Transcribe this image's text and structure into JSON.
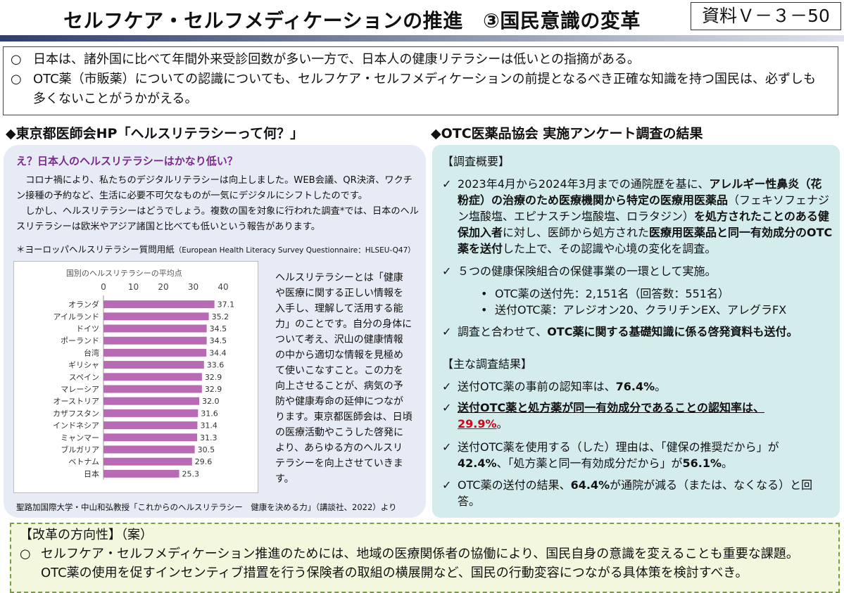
{
  "header": {
    "title": "セルフケア・セルフメディケーションの推進　③国民意識の変革",
    "doc_id": "資料Ｖ－３－50"
  },
  "summary": {
    "bullet": "○",
    "line1": "日本は、諸外国に比べて年間外来受診回数が多い一方で、日本人の健康リテラシーは低いとの指摘がある。",
    "line2a": "OTC薬（市販薬）についての認識についても、セルフケア・セルフメディケーションの前提となるべき正確な知識を持つ国民は、必ずしも",
    "line2b": "多くないことがうかがえる。"
  },
  "left": {
    "heading": "◆東京都医師会HP「ヘルスリテラシーって何？」",
    "subheading": "え？日本人のヘルスリテラシーはかなり低い？",
    "para1": "コロナ禍により、私たちのデジタルリテラシーは向上しました。WEB会議、QR決済、ワクチン接種の予約など、生活に必要不可欠なものが一気にデジタルにシフトしたのです。",
    "para2": "しかし、ヘルスリテラシーはどうでしょう。複数の国を対象に行われた調査*では、日本のヘルスリテラシーは欧米やアジア諸国と比べても低いという報告があります。",
    "footnote": "＊ヨーロッパヘルスリテラシー質問用紙",
    "footnote_small": "（European Health Literacy Survey Questionnaire：HLSEU-Q47）",
    "side_text": "ヘルスリテラシーとは「健康や医療に関する正しい情報を入手し、理解して活用する能力」のことです。自分の身体について考え、沢山の健康情報の中から適切な情報を見極めて使いこなすこと。この力を向上させることが、病気の予防や健康寿命の延伸につながります。東京都医師会は、日頃の医療活動やこうした啓発により、あらゆる方のヘルスリテラシーを向上させていきます。",
    "credit": "聖路加国際大学・中山和弘教授「これからのヘルスリテラシー　健康を決める力」（講談社、2022）より"
  },
  "chart_data": {
    "type": "bar",
    "title": "国別のヘルスリテラシーの平均点",
    "orientation": "horizontal",
    "categories": [
      "オランダ",
      "アイルランド",
      "ドイツ",
      "ポーランド",
      "台湾",
      "ギリシャ",
      "スペイン",
      "マレーシア",
      "オーストリア",
      "カザフスタン",
      "インドネシア",
      "ミャンマー",
      "ブルガリア",
      "ベトナム",
      "日本"
    ],
    "values": [
      37.1,
      35.2,
      34.5,
      34.5,
      34.4,
      33.6,
      32.9,
      32.9,
      32.0,
      31.6,
      31.4,
      31.3,
      30.5,
      29.6,
      25.3
    ],
    "value_labels": [
      "37.1",
      "35.2",
      "34.5",
      "34.5",
      "34.4",
      "33.6",
      "32.9",
      "32.9",
      "32.0",
      "31.6",
      "31.4",
      "31.3",
      "30.5",
      "29.6",
      "25.3"
    ],
    "xlim": [
      0,
      40
    ],
    "xticks": [
      0,
      10,
      20,
      30,
      40
    ],
    "xtick_labels": [
      "0",
      "10",
      "20",
      "30",
      "40"
    ],
    "bar_color": "#b86bb4",
    "grid": false
  },
  "right": {
    "heading": "◆OTC医薬品協会 実施アンケート調査の結果",
    "overview_label": "【調査概要】",
    "check": "✓",
    "o1_a": "2023年4月から2024年3月までの通院歴を基に、",
    "o1_b": "アレルギー性鼻炎（花粉症）の治療のため医療機関から特定の医療用医薬品",
    "o1_c": "（フェキソフェナジン塩酸塩、エピナスチン塩酸塩、ロラタジン）",
    "o1_d": "を処方されたことのある健保加入者",
    "o1_e": "に対し、医師から処方された",
    "o1_f": "医療用医薬品と同一有効成分のOTC薬を送付",
    "o1_g": "した上で、その認識や心境の変化を調査。",
    "o2": "５つの健康保険組合の保健事業の一環として実施。",
    "dot": "•",
    "o2_1": "OTC薬の送付先：2,151名（回答数：551名）",
    "o2_2": "送付OTC薬：アレジオン20、クラリチンEX、アレグラFX",
    "o3_a": "調査と合わせて、",
    "o3_b": "OTC薬に関する基礎知識に係る啓発資料も送付。",
    "results_label": "【主な調査結果】",
    "r1_a": "送付OTC薬の事前の認知率は、",
    "r1_b": "76.4%",
    "r1_c": "。",
    "r2_a": "送付OTC薬と処方薬が同一有効成分であることの認知率は、",
    "r2_b": "29.9%",
    "r2_c": "。",
    "r3_a": "送付OTC薬を使用する（した）理由は、「健保の推奨だから」が",
    "r3_b": "42.4%",
    "r3_c": "、「処方薬と同一有効成分だから」が",
    "r3_d": "56.1%",
    "r3_e": "。",
    "r4_a": "OTC薬の送付の結果、",
    "r4_b": "64.4%",
    "r4_c": "が通院が減る（または、なくなる）と回答。"
  },
  "bottom": {
    "label": "【改革の方向性】（案）",
    "bullet": "○",
    "line1": "セルフケア・セルフメディケーション推進のためには、地域の医療関係者の協働により、国民自身の意識を変えることも重要な課題。",
    "line2": "OTC薬の使用を促すインセンティブ措置を行う保険者の取組の横展開など、国民の行動変容につながる具体策を検討すべき。"
  }
}
